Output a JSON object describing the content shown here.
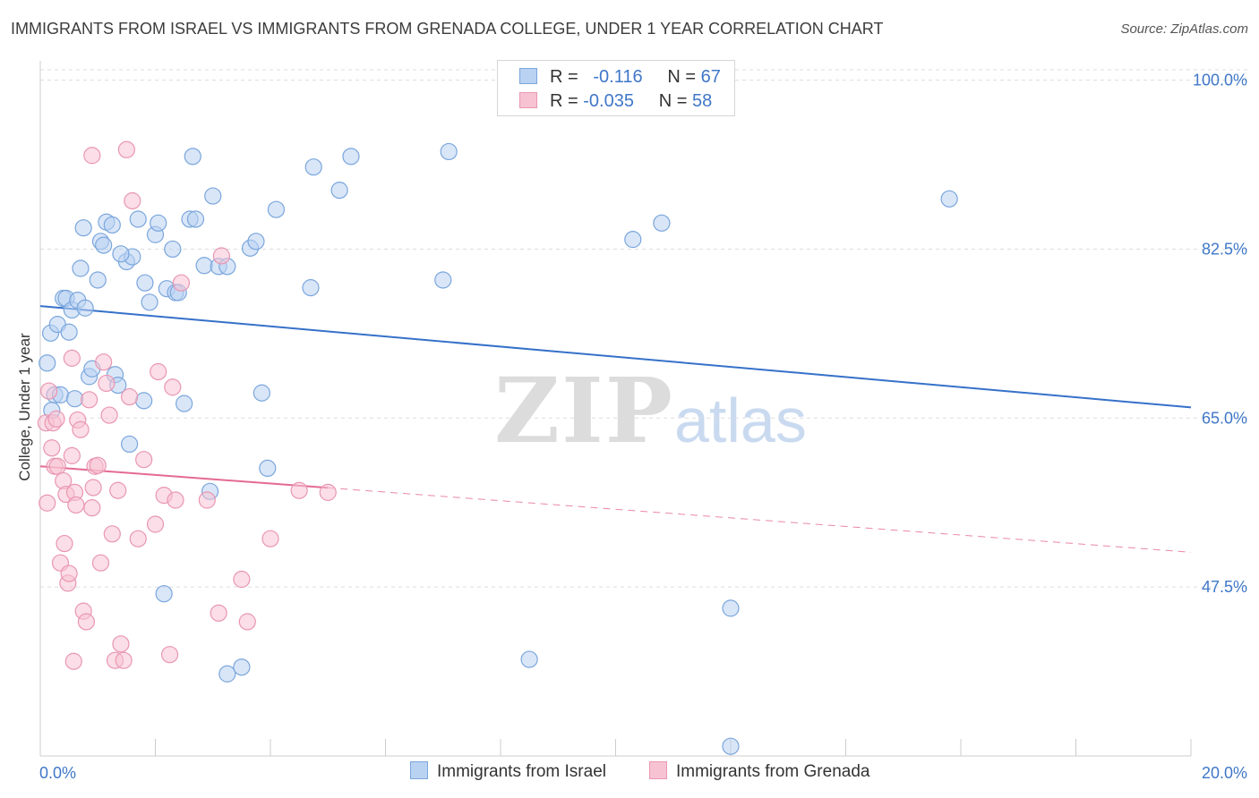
{
  "title": "IMMIGRANTS FROM ISRAEL VS IMMIGRANTS FROM GRENADA COLLEGE, UNDER 1 YEAR CORRELATION CHART",
  "source": "Source: ZipAtlas.com",
  "watermark": {
    "zip": "ZIP",
    "atlas": "atlas"
  },
  "legend": {
    "rows": [
      {
        "r_label": "R =",
        "r_value": "-0.116",
        "n_label": "N =",
        "n_value": "67"
      },
      {
        "r_label": "R =",
        "r_value": "-0.035",
        "n_label": "N =",
        "n_value": "58"
      }
    ]
  },
  "colors": {
    "israel_fill": "#b9d2f2",
    "israel_stroke": "#7aa6dc",
    "israel_line": "#3571c9",
    "grenada_fill": "#f7c3d3",
    "grenada_stroke": "#e996b2",
    "grenada_line": "#e46a93",
    "grid": "#dddddd",
    "tick_text": "#3f77c8"
  },
  "chart_data": {
    "type": "scatter",
    "ylabel": "College, Under 1 year",
    "xlim": [
      0,
      20
    ],
    "ylim": [
      30,
      102
    ],
    "x_tick_labels": [
      "0.0%",
      "20.0%"
    ],
    "y_ticks": [
      47.5,
      65.0,
      82.5,
      100.0
    ],
    "y_tick_labels": [
      "47.5%",
      "65.0%",
      "82.5%",
      "100.0%"
    ],
    "grid": true,
    "legend_position": "bottom-center",
    "series": [
      {
        "name": "Immigrants from Israel",
        "r": -0.116,
        "n": 67,
        "trend": {
          "x": [
            0,
            20
          ],
          "y": [
            76.6,
            66.1
          ],
          "solid_to": 20
        },
        "points": [
          [
            0.12,
            70.7
          ],
          [
            0.18,
            73.8
          ],
          [
            0.25,
            67.4
          ],
          [
            0.3,
            74.7
          ],
          [
            0.35,
            67.4
          ],
          [
            0.4,
            77.4
          ],
          [
            0.45,
            77.4
          ],
          [
            0.5,
            73.9
          ],
          [
            0.55,
            76.2
          ],
          [
            0.65,
            77.2
          ],
          [
            0.7,
            80.5
          ],
          [
            0.75,
            84.7
          ],
          [
            0.78,
            76.4
          ],
          [
            0.85,
            69.3
          ],
          [
            0.9,
            70.1
          ],
          [
            1.0,
            79.3
          ],
          [
            1.05,
            83.3
          ],
          [
            1.1,
            82.9
          ],
          [
            1.15,
            85.3
          ],
          [
            1.25,
            85.0
          ],
          [
            1.3,
            69.5
          ],
          [
            1.35,
            68.4
          ],
          [
            1.5,
            81.2
          ],
          [
            1.55,
            62.3
          ],
          [
            1.6,
            81.7
          ],
          [
            1.7,
            85.6
          ],
          [
            1.8,
            66.8
          ],
          [
            1.82,
            79.0
          ],
          [
            1.9,
            77.0
          ],
          [
            2.0,
            84.0
          ],
          [
            2.05,
            85.2
          ],
          [
            2.15,
            46.8
          ],
          [
            2.2,
            78.4
          ],
          [
            2.3,
            82.5
          ],
          [
            2.35,
            78.0
          ],
          [
            2.4,
            78.0
          ],
          [
            2.6,
            85.6
          ],
          [
            2.65,
            92.1
          ],
          [
            2.7,
            85.6
          ],
          [
            2.85,
            80.8
          ],
          [
            2.95,
            57.4
          ],
          [
            3.0,
            88.0
          ],
          [
            3.1,
            80.7
          ],
          [
            3.25,
            38.5
          ],
          [
            3.25,
            80.7
          ],
          [
            3.5,
            39.2
          ],
          [
            3.65,
            82.6
          ],
          [
            3.75,
            83.3
          ],
          [
            3.85,
            67.6
          ],
          [
            3.95,
            59.8
          ],
          [
            4.1,
            86.6
          ],
          [
            4.7,
            78.5
          ],
          [
            4.75,
            91.0
          ],
          [
            5.2,
            88.6
          ],
          [
            5.4,
            92.1
          ],
          [
            7.0,
            79.3
          ],
          [
            7.1,
            92.6
          ],
          [
            8.5,
            40.0
          ],
          [
            10.3,
            83.5
          ],
          [
            10.8,
            85.2
          ],
          [
            12.0,
            45.3
          ],
          [
            12.0,
            31.0
          ],
          [
            15.8,
            87.7
          ],
          [
            0.2,
            65.8
          ],
          [
            0.6,
            67.0
          ],
          [
            2.5,
            66.5
          ],
          [
            1.4,
            82.0
          ]
        ]
      },
      {
        "name": "Immigrants from Grenada",
        "r": -0.035,
        "n": 58,
        "trend": {
          "x": [
            0,
            20
          ],
          "y": [
            60.0,
            51.1
          ],
          "solid_to": 5.0
        },
        "points": [
          [
            0.1,
            64.5
          ],
          [
            0.12,
            56.2
          ],
          [
            0.15,
            67.8
          ],
          [
            0.2,
            61.9
          ],
          [
            0.22,
            64.5
          ],
          [
            0.25,
            60.0
          ],
          [
            0.28,
            64.9
          ],
          [
            0.3,
            60.0
          ],
          [
            0.35,
            50.0
          ],
          [
            0.4,
            58.5
          ],
          [
            0.42,
            52.0
          ],
          [
            0.45,
            57.1
          ],
          [
            0.48,
            47.9
          ],
          [
            0.5,
            48.9
          ],
          [
            0.55,
            61.1
          ],
          [
            0.58,
            39.8
          ],
          [
            0.6,
            57.3
          ],
          [
            0.62,
            56.0
          ],
          [
            0.65,
            64.8
          ],
          [
            0.7,
            63.8
          ],
          [
            0.75,
            45.0
          ],
          [
            0.8,
            43.9
          ],
          [
            0.85,
            66.9
          ],
          [
            0.9,
            55.7
          ],
          [
            0.92,
            57.8
          ],
          [
            0.95,
            60.0
          ],
          [
            1.0,
            60.1
          ],
          [
            1.05,
            50.0
          ],
          [
            1.1,
            70.8
          ],
          [
            1.15,
            68.6
          ],
          [
            1.2,
            65.3
          ],
          [
            1.25,
            53.0
          ],
          [
            1.3,
            39.9
          ],
          [
            1.35,
            57.5
          ],
          [
            1.4,
            41.6
          ],
          [
            1.45,
            39.9
          ],
          [
            1.5,
            92.8
          ],
          [
            1.55,
            67.2
          ],
          [
            1.6,
            87.5
          ],
          [
            1.7,
            52.5
          ],
          [
            1.8,
            60.7
          ],
          [
            2.0,
            54.0
          ],
          [
            2.05,
            69.8
          ],
          [
            2.15,
            57.0
          ],
          [
            2.25,
            40.5
          ],
          [
            2.3,
            68.2
          ],
          [
            2.35,
            56.5
          ],
          [
            2.9,
            56.5
          ],
          [
            3.1,
            44.8
          ],
          [
            3.15,
            81.8
          ],
          [
            3.5,
            48.3
          ],
          [
            3.6,
            43.9
          ],
          [
            4.0,
            52.5
          ],
          [
            4.5,
            57.5
          ],
          [
            5.0,
            57.3
          ],
          [
            0.9,
            92.2
          ],
          [
            0.55,
            71.2
          ],
          [
            2.45,
            79.0
          ]
        ]
      }
    ]
  },
  "bottom_legend": [
    {
      "label": "Immigrants from Israel"
    },
    {
      "label": "Immigrants from Grenada"
    }
  ]
}
